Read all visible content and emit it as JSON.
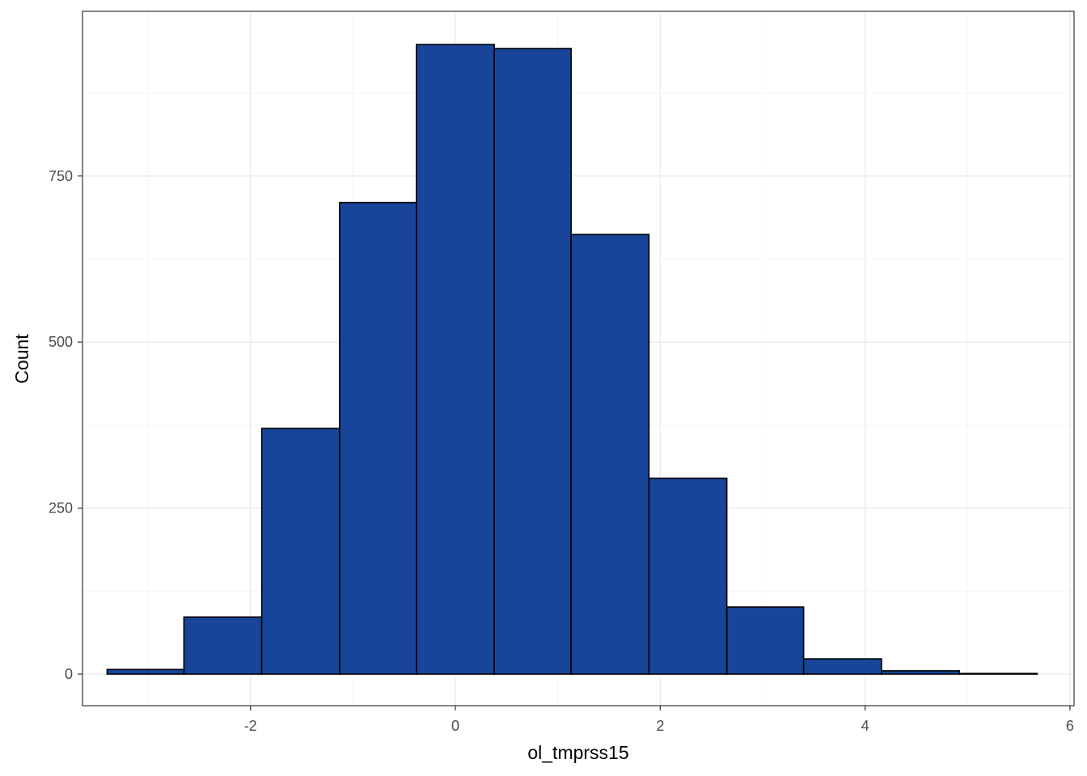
{
  "chart_data": {
    "type": "bar",
    "subtype": "histogram",
    "xlabel": "ol_tmprss15",
    "ylabel": "Count",
    "xlim": [
      -3.64,
      6.04
    ],
    "ylim": [
      -47.5,
      998
    ],
    "x_ticks": [
      -2,
      0,
      2,
      4,
      6
    ],
    "x_tick_labels": [
      "-2",
      "0",
      "2",
      "4",
      "6"
    ],
    "y_ticks": [
      0,
      250,
      500,
      750
    ],
    "y_tick_labels": [
      "0",
      "250",
      "500",
      "750"
    ],
    "grid": true,
    "legend": "none",
    "bins": [
      {
        "x0": -3.4,
        "x1": -2.65,
        "count": 7
      },
      {
        "x0": -2.65,
        "x1": -1.89,
        "count": 86
      },
      {
        "x0": -1.89,
        "x1": -1.13,
        "count": 370
      },
      {
        "x0": -1.13,
        "x1": -0.38,
        "count": 710
      },
      {
        "x0": -0.38,
        "x1": 0.38,
        "count": 948
      },
      {
        "x0": 0.38,
        "x1": 1.13,
        "count": 942
      },
      {
        "x0": 1.13,
        "x1": 1.89,
        "count": 662
      },
      {
        "x0": 1.89,
        "x1": 2.65,
        "count": 295
      },
      {
        "x0": 2.65,
        "x1": 3.4,
        "count": 101
      },
      {
        "x0": 3.4,
        "x1": 4.16,
        "count": 23
      },
      {
        "x0": 4.16,
        "x1": 4.92,
        "count": 5
      },
      {
        "x0": 4.92,
        "x1": 5.68,
        "count": 1
      }
    ],
    "colors": {
      "bar_fill": "#18449a",
      "bar_stroke": "#000000",
      "grid_major": "#ebebeb",
      "grid_minor": "#f5f5f5",
      "panel_border": "#333333"
    }
  }
}
